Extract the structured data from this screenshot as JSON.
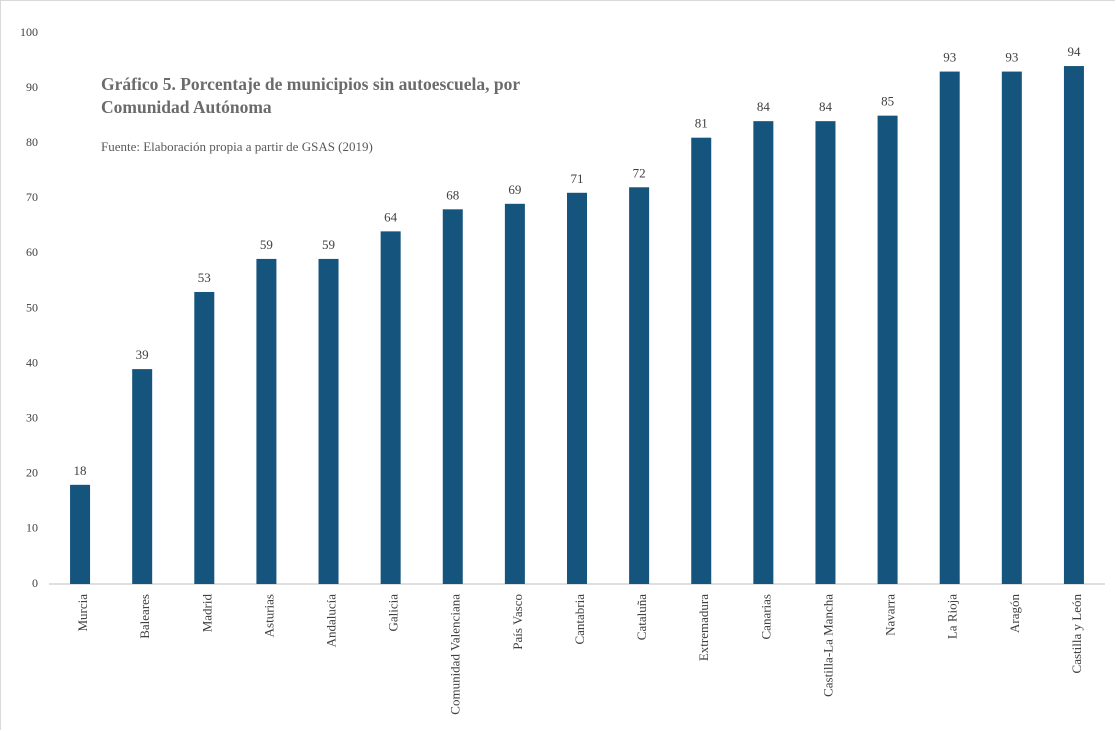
{
  "chart_data": {
    "type": "bar",
    "title": "Gráfico 5. Porcentaje de municipios sin autoescuela, por Comunidad Autónoma",
    "source": "Fuente: Elaboración propia a partir de GSAS (2019)",
    "categories": [
      "Murcia",
      "Baleares",
      "Madrid",
      "Asturias",
      "Andalucía",
      "Galicia",
      "Comunidad Valenciana",
      "País Vasco",
      "Cantabria",
      "Cataluña",
      "Extremadura",
      "Canarias",
      "Castilla-La Mancha",
      "Navarra",
      "La Rioja",
      "Aragón",
      "Castilla y León"
    ],
    "values": [
      18,
      39,
      53,
      59,
      59,
      64,
      68,
      69,
      71,
      72,
      81,
      84,
      84,
      85,
      93,
      93,
      94
    ],
    "color": "#15547d",
    "ylim": [
      0,
      100
    ],
    "yticks": [
      0,
      10,
      20,
      30,
      40,
      50,
      60,
      70,
      80,
      90,
      100
    ],
    "grid": false
  }
}
